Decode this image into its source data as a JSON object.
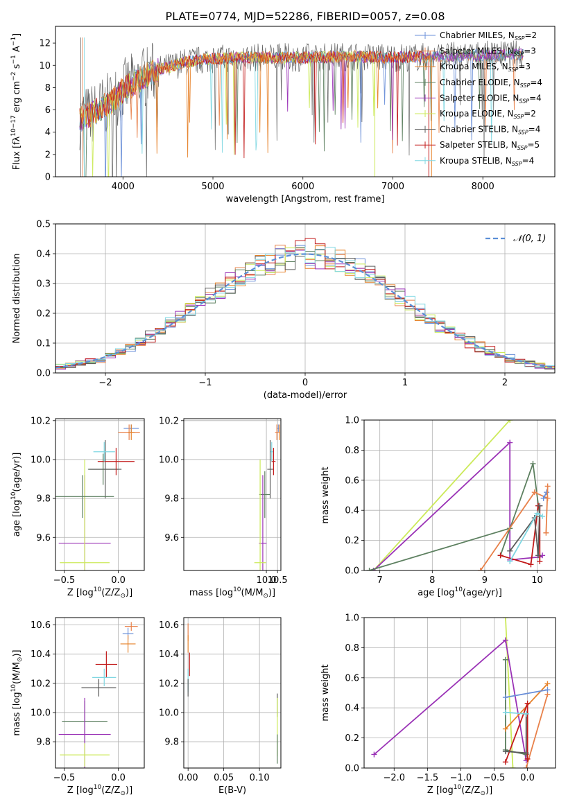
{
  "figure": {
    "title": "PLATE=0774, MJD=52286, FIBERID=0057, z=0.08"
  },
  "colors": {
    "series": [
      "#6a8fd8",
      "#e8814a",
      "#e6822a",
      "#5d8060",
      "#9a32b6",
      "#ccea5a",
      "#5c5c5c",
      "#c21a1a",
      "#7fd7e2"
    ],
    "gauss": "#5b8fd6",
    "grid": "#b0b0b0"
  },
  "legend": {
    "ssp": [
      {
        "prefix": "Chabrier MILES, N",
        "sub": "SSP",
        "suffix": "=2"
      },
      {
        "prefix": "Salpeter MILES, N",
        "sub": "SSP",
        "suffix": "=3"
      },
      {
        "prefix": "Kroupa MILES, N",
        "sub": "SSP",
        "suffix": "=3"
      },
      {
        "prefix": "Chabrier ELODIE, N",
        "sub": "SSP",
        "suffix": "=4"
      },
      {
        "prefix": "Salpeter ELODIE, N",
        "sub": "SSP",
        "suffix": "=4"
      },
      {
        "prefix": "Kroupa ELODIE, N",
        "sub": "SSP",
        "suffix": "=2"
      },
      {
        "prefix": "Chabrier STELIB, N",
        "sub": "SSP",
        "suffix": "=4"
      },
      {
        "prefix": "Salpeter STELIB, N",
        "sub": "SSP",
        "suffix": "=5"
      },
      {
        "prefix": "Kroupa STELIB, N",
        "sub": "SSP",
        "suffix": "=4"
      }
    ],
    "gauss": "𝒩(0, 1)"
  },
  "chart_data": [
    {
      "type": "line",
      "ylabel_parts": [
        "Flux [f",
        "λ",
        "10",
        "−17",
        " erg cm",
        "−2",
        " s",
        "−1",
        " A",
        "−1",
        "]"
      ],
      "xlabel": "wavelength [Angstrom, rest frame]",
      "xlim": [
        3250,
        8800
      ],
      "ylim": [
        0,
        13.5
      ],
      "xticks": [
        4000,
        5000,
        6000,
        7000,
        8000
      ],
      "yticks": [
        0,
        2,
        4,
        6,
        8,
        10,
        12
      ],
      "grid": false,
      "continuum_knots": [
        [
          3500,
          5.2
        ],
        [
          3650,
          5.6
        ],
        [
          3850,
          6.6
        ],
        [
          4000,
          7.8
        ],
        [
          4200,
          8.8
        ],
        [
          4400,
          9.6
        ],
        [
          4700,
          10.3
        ],
        [
          5000,
          10.6
        ],
        [
          5500,
          10.7
        ],
        [
          6000,
          10.7
        ],
        [
          6500,
          10.8
        ],
        [
          7000,
          10.7
        ],
        [
          7500,
          10.8
        ],
        [
          8000,
          10.9
        ],
        [
          8500,
          11.0
        ]
      ]
    },
    {
      "type": "histogram",
      "xlabel": "(data-model)/error",
      "ylabel": "Normed distribution",
      "xlim": [
        -2.5,
        2.5
      ],
      "ylim": [
        0,
        0.5
      ],
      "xticks": [
        -2,
        -1,
        0,
        1,
        2
      ],
      "xtick_labels": [
        "−2",
        "−1",
        "0",
        "1",
        "2"
      ],
      "yticks": [
        0.0,
        0.1,
        0.2,
        0.3,
        0.4,
        0.5
      ],
      "ytick_labels": [
        "0.0",
        "0.1",
        "0.2",
        "0.3",
        "0.4",
        "0.5"
      ],
      "bin_width": 0.1,
      "grid": true,
      "legend_loc": "upper right"
    },
    {
      "type": "scatter",
      "xlabel_parts": [
        "Z [log",
        "10",
        "(Z/Z",
        "⊙",
        ")]"
      ],
      "ylabel_parts": [
        "age  [log",
        "10",
        "(age/yr)]"
      ],
      "xlim": [
        -0.58,
        0.24
      ],
      "ylim": [
        9.43,
        10.21
      ],
      "xticks": [
        -0.5,
        0.0
      ],
      "xtick_labels": [
        "−0.5",
        "0.0"
      ],
      "yticks": [
        9.6,
        9.8,
        10.0,
        10.2
      ],
      "ytick_labels": [
        "9.6",
        "9.8",
        "10.0",
        "10.2"
      ],
      "grid": true,
      "points": [
        {
          "x": 0.12,
          "y": 10.16,
          "ex": 0.07,
          "ey": 0.02,
          "c": 0
        },
        {
          "x": 0.1,
          "y": 10.14,
          "ex": 0.1,
          "ey": 0.04,
          "c": 1
        },
        {
          "x": 0.12,
          "y": 10.14,
          "ex": 0.03,
          "ey": 0.04,
          "c": 2
        },
        {
          "x": -0.14,
          "y": 9.95,
          "ex": 0.14,
          "ey": 0.08,
          "c": 3
        },
        {
          "x": -0.31,
          "y": 9.57,
          "ex": 0.24,
          "ey": 0.35,
          "c": 4
        },
        {
          "x": -0.31,
          "y": 9.47,
          "ex": 0.23,
          "ey": 0.53,
          "c": 5
        },
        {
          "x": -0.12,
          "y": 9.95,
          "ex": 0.15,
          "ey": 0.15,
          "c": 6
        },
        {
          "x": -0.02,
          "y": 9.99,
          "ex": 0.17,
          "ey": 0.07,
          "c": 7
        },
        {
          "x": -0.13,
          "y": 10.04,
          "ex": 0.1,
          "ey": 0.05,
          "c": 8
        },
        {
          "x": -0.33,
          "y": 9.81,
          "ex": 0.29,
          "ey": 0.11,
          "c": 3
        }
      ]
    },
    {
      "type": "scatter",
      "xlabel_parts": [
        "mass [log",
        "10",
        "(M/M",
        "⊙",
        ")]"
      ],
      "xlim": [
        6.3,
        10.65
      ],
      "ylim": [
        9.43,
        10.21
      ],
      "xticks": [
        10.0,
        10.5
      ],
      "xtick_labels": [
        "10.0",
        "10.5"
      ],
      "yticks": [
        9.6,
        9.8,
        10.0,
        10.2
      ],
      "ytick_labels": [
        "9.6",
        "9.8",
        "10.0",
        "10.2"
      ],
      "grid": true,
      "points": [
        {
          "x": 10.55,
          "y": 10.16,
          "ex": 0.05,
          "ey": 0.02,
          "c": 0
        },
        {
          "x": 10.47,
          "y": 10.14,
          "ex": 0.08,
          "ey": 0.04,
          "c": 1
        },
        {
          "x": 10.58,
          "y": 10.14,
          "ex": 0.03,
          "ey": 0.04,
          "c": 2
        },
        {
          "x": 9.93,
          "y": 9.82,
          "ex": 0.25,
          "ey": 0.12,
          "c": 3
        },
        {
          "x": 9.84,
          "y": 9.57,
          "ex": 0.17,
          "ey": 0.35,
          "c": 4
        },
        {
          "x": 9.72,
          "y": 9.47,
          "ex": 0.26,
          "ey": 0.53,
          "c": 5
        },
        {
          "x": 10.17,
          "y": 9.95,
          "ex": 0.13,
          "ey": 0.15,
          "c": 6
        },
        {
          "x": 10.32,
          "y": 9.99,
          "ex": 0.09,
          "ey": 0.07,
          "c": 7
        },
        {
          "x": 10.24,
          "y": 10.04,
          "ex": 0.06,
          "ey": 0.05,
          "c": 8
        }
      ]
    },
    {
      "type": "line",
      "xlabel_parts": [
        "age  [log",
        "10",
        "(age/yr)]"
      ],
      "ylabel": "mass weight",
      "xlim": [
        6.7,
        10.35
      ],
      "ylim": [
        0,
        1
      ],
      "xticks": [
        7,
        8,
        9,
        10
      ],
      "yticks": [
        0.0,
        0.2,
        0.4,
        0.6,
        0.8,
        1.0
      ],
      "ytick_labels": [
        "0.0",
        "0.2",
        "0.4",
        "0.6",
        "0.8",
        "1.0"
      ],
      "grid": true,
      "series": [
        {
          "c": 5,
          "x": [
            6.88,
            9.48
          ],
          "y": [
            0.0,
            1.0
          ]
        },
        {
          "c": 4,
          "x": [
            6.88,
            9.48,
            9.48,
            10.05,
            10.1
          ],
          "y": [
            0.0,
            0.85,
            0.07,
            0.09,
            0.1
          ]
        },
        {
          "c": 3,
          "x": [
            6.8,
            9.48,
            9.3,
            9.92,
            10.05
          ],
          "y": [
            0.0,
            0.28,
            0.1,
            0.71,
            0.36
          ]
        },
        {
          "c": 1,
          "x": [
            8.92,
            9.95,
            10.2
          ],
          "y": [
            0.0,
            0.52,
            0.48
          ]
        },
        {
          "c": 7,
          "x": [
            9.3,
            9.88,
            10.02,
            10.05,
            10.05
          ],
          "y": [
            0.1,
            0.04,
            0.43,
            0.43,
            0.06
          ]
        },
        {
          "c": 6,
          "x": [
            9.48,
            9.95,
            10.02,
            10.05
          ],
          "y": [
            0.13,
            0.35,
            0.1,
            0.43
          ]
        },
        {
          "c": 8,
          "x": [
            9.48,
            10.0,
            10.1
          ],
          "y": [
            0.06,
            0.38,
            0.36
          ]
        },
        {
          "c": 0,
          "x": [
            10.12,
            10.18
          ],
          "y": [
            0.48,
            0.52
          ]
        },
        {
          "c": 1,
          "x": [
            10.17,
            10.2
          ],
          "y": [
            0.25,
            0.56
          ]
        }
      ]
    },
    {
      "type": "scatter",
      "xlabel_parts": [
        "Z [log",
        "10",
        "(Z/Z",
        "⊙",
        ")]"
      ],
      "ylabel_parts": [
        "mass [log",
        "10",
        "(M/M",
        "⊙",
        ")]"
      ],
      "xlim": [
        -0.58,
        0.24
      ],
      "ylim": [
        9.62,
        10.65
      ],
      "xticks": [
        -0.5,
        0.0
      ],
      "xtick_labels": [
        "−0.5",
        "0.0"
      ],
      "yticks": [
        9.8,
        10.0,
        10.2,
        10.4,
        10.6
      ],
      "ytick_labels": [
        "9.8",
        "10.0",
        "10.2",
        "10.4",
        "10.6"
      ],
      "grid": true,
      "points": [
        {
          "x": 0.12,
          "y": 10.59,
          "ex": 0.06,
          "ey": 0.03,
          "c": 1
        },
        {
          "x": 0.09,
          "y": 10.54,
          "ex": 0.05,
          "ey": 0.04,
          "c": 0
        },
        {
          "x": 0.09,
          "y": 10.47,
          "ex": 0.07,
          "ey": 0.06,
          "c": 2
        },
        {
          "x": -0.11,
          "y": 10.33,
          "ex": 0.1,
          "ey": 0.09,
          "c": 7
        },
        {
          "x": -0.13,
          "y": 10.24,
          "ex": 0.11,
          "ey": 0.06,
          "c": 8
        },
        {
          "x": -0.18,
          "y": 10.17,
          "ex": 0.16,
          "ey": 0.06,
          "c": 6
        },
        {
          "x": -0.31,
          "y": 9.94,
          "ex": 0.21,
          "ey": 0.14,
          "c": 3
        },
        {
          "x": -0.31,
          "y": 9.85,
          "ex": 0.24,
          "ey": 0.25,
          "c": 4
        },
        {
          "x": -0.31,
          "y": 9.71,
          "ex": 0.23,
          "ey": 0.08,
          "c": 5
        }
      ]
    },
    {
      "type": "scatter",
      "xlabel": "E(B-V)",
      "xlim": [
        -0.006,
        0.13
      ],
      "ylim": [
        9.62,
        10.65
      ],
      "xticks": [
        0.0,
        0.05,
        0.1
      ],
      "xtick_labels": [
        "0.00",
        "0.05",
        "0.10"
      ],
      "yticks": [
        9.8,
        10.0,
        10.2,
        10.4,
        10.6
      ],
      "ytick_labels": [
        "9.8",
        "10.0",
        "10.2",
        "10.4",
        "10.6"
      ],
      "grid": true,
      "points": [
        {
          "x": 0.0,
          "y": 10.55,
          "ex": 0,
          "ey": 0.06,
          "c": 1
        },
        {
          "x": 0.0,
          "y": 10.47,
          "ex": 0,
          "ey": 0.06,
          "c": 2
        },
        {
          "x": 0.002,
          "y": 10.33,
          "ex": 0,
          "ey": 0.08,
          "c": 7
        },
        {
          "x": 0.0,
          "y": 10.22,
          "ex": 0,
          "ey": 0.08,
          "c": 8
        },
        {
          "x": 0.0,
          "y": 10.17,
          "ex": 0,
          "ey": 0.06,
          "c": 6
        },
        {
          "x": 0.125,
          "y": 10.05,
          "ex": 0,
          "ey": 0.08,
          "c": 6
        },
        {
          "x": 0.125,
          "y": 9.9,
          "ex": 0,
          "ey": 0.2,
          "c": 5
        },
        {
          "x": 0.125,
          "y": 9.75,
          "ex": 0,
          "ey": 0.1,
          "c": 3
        }
      ]
    },
    {
      "type": "line",
      "xlabel_parts": [
        "Z [log",
        "10",
        "(Z/Z",
        "⊙",
        ")]"
      ],
      "ylabel": "mass weight",
      "xlim": [
        -2.45,
        0.42
      ],
      "ylim": [
        0,
        1
      ],
      "xticks": [
        -2.0,
        -1.5,
        -1.0,
        -0.5,
        0.0
      ],
      "xtick_labels": [
        "−2.0",
        "−1.5",
        "−1.0",
        "−0.5",
        "0.0"
      ],
      "yticks": [
        0.0,
        0.2,
        0.4,
        0.6,
        0.8,
        1.0
      ],
      "ytick_labels": [
        "0.0",
        "0.2",
        "0.4",
        "0.6",
        "0.8",
        "1.0"
      ],
      "grid": true,
      "series": [
        {
          "c": 5,
          "x": [
            -0.33,
            -0.22
          ],
          "y": [
            1.0,
            0.0
          ]
        },
        {
          "c": 4,
          "x": [
            -2.3,
            -0.33,
            -0.02
          ],
          "y": [
            0.09,
            0.85,
            0.05
          ]
        },
        {
          "c": 3,
          "x": [
            -0.33,
            -0.33,
            -0.02
          ],
          "y": [
            0.72,
            0.12,
            0.09
          ]
        },
        {
          "c": 1,
          "x": [
            -0.02,
            0.3
          ],
          "y": [
            0.0,
            0.49
          ]
        },
        {
          "c": 2,
          "x": [
            -0.33,
            0.3
          ],
          "y": [
            0.26,
            0.56
          ]
        },
        {
          "c": 0,
          "x": [
            -0.33,
            0.3
          ],
          "y": [
            0.47,
            0.52
          ]
        },
        {
          "c": 7,
          "x": [
            -0.33,
            0.0,
            0.0
          ],
          "y": [
            0.04,
            0.43,
            0.06
          ]
        },
        {
          "c": 6,
          "x": [
            -0.33,
            -0.02,
            -0.02
          ],
          "y": [
            0.11,
            0.1,
            0.36
          ]
        },
        {
          "c": 8,
          "x": [
            -0.33,
            -0.02
          ],
          "y": [
            0.37,
            0.36
          ]
        }
      ]
    }
  ]
}
